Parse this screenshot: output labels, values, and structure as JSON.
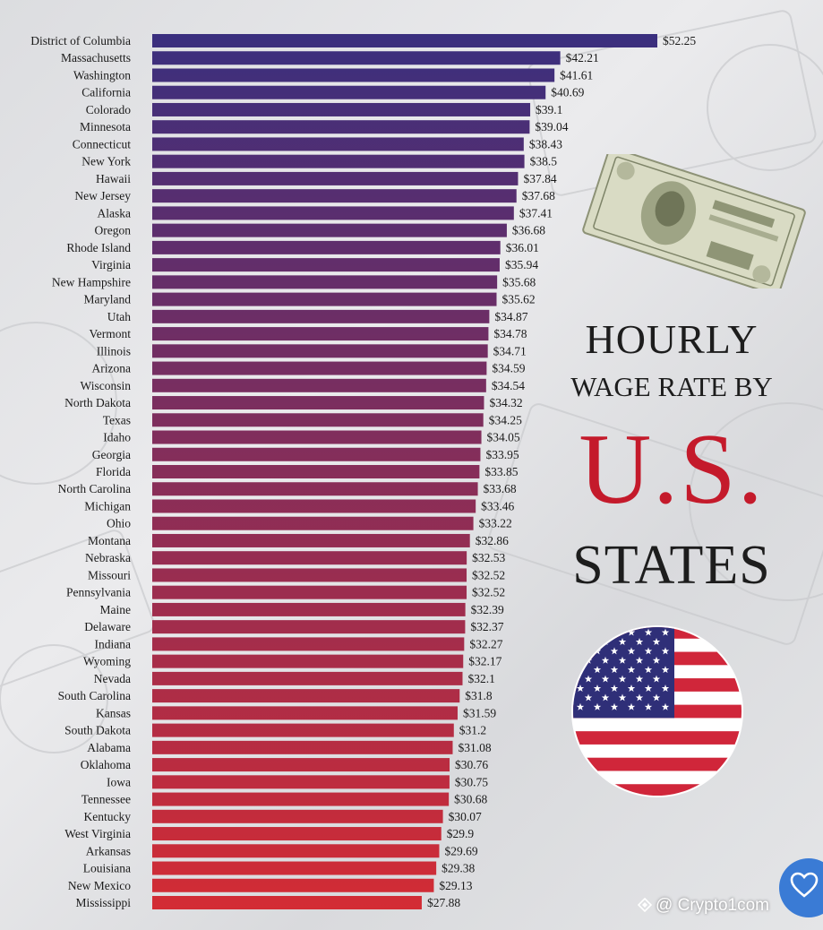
{
  "title": {
    "line1": "HOURLY",
    "line2": "WAGE RATE BY",
    "line3": "U.S.",
    "line4": "STATES"
  },
  "watermark": "@ Crypto1com",
  "icons": {
    "bill": "hundred-dollar-bill-icon",
    "flag": "us-flag-icon",
    "heart": "heart-icon",
    "watermark": "diamond-logo-icon"
  },
  "colors": {
    "bar_top": "#3a2f7e",
    "bar_bottom": "#d42c34",
    "title_red": "#c41a2b",
    "heart_blue": "#3a7bd5"
  },
  "chart_data": {
    "type": "bar",
    "orientation": "horizontal",
    "categories": [
      "District of Columbia",
      "Massachusetts",
      "Washington",
      "California",
      "Colorado",
      "Minnesota",
      "Connecticut",
      "New York",
      "Hawaii",
      "New Jersey",
      "Alaska",
      "Oregon",
      "Rhode Island",
      "Virginia",
      "New Hampshire",
      "Maryland",
      "Utah",
      "Vermont",
      "Illinois",
      "Arizona",
      "Wisconsin",
      "North Dakota",
      "Texas",
      "Idaho",
      "Georgia",
      "Florida",
      "North Carolina",
      "Michigan",
      "Ohio",
      "Montana",
      "Nebraska",
      "Missouri",
      "Pennsylvania",
      "Maine",
      "Delaware",
      "Indiana",
      "Wyoming",
      "Nevada",
      "South Carolina",
      "Kansas",
      "South Dakota",
      "Alabama",
      "Oklahoma",
      "Iowa",
      "Tennessee",
      "Kentucky",
      "West Virginia",
      "Arkansas",
      "Louisiana",
      "New Mexico",
      "Mississippi"
    ],
    "values": [
      52.25,
      42.21,
      41.61,
      40.69,
      39.1,
      39.04,
      38.43,
      38.5,
      37.84,
      37.68,
      37.41,
      36.68,
      36.01,
      35.94,
      35.68,
      35.62,
      34.87,
      34.78,
      34.71,
      34.59,
      34.54,
      34.32,
      34.25,
      34.05,
      33.95,
      33.85,
      33.68,
      33.46,
      33.22,
      32.86,
      32.53,
      32.52,
      32.52,
      32.39,
      32.37,
      32.27,
      32.17,
      32.1,
      31.8,
      31.59,
      31.2,
      31.08,
      30.76,
      30.75,
      30.68,
      30.07,
      29.9,
      29.69,
      29.38,
      29.13,
      27.88
    ],
    "value_labels": [
      "$52.25",
      "$42.21",
      "$41.61",
      "$40.69",
      "$39.1",
      "$39.04",
      "$38.43",
      "$38.5",
      "$37.84",
      "$37.68",
      "$37.41",
      "$36.68",
      "$36.01",
      "$35.94",
      "$35.68",
      "$35.62",
      "$34.87",
      "$34.78",
      "$34.71",
      "$34.59",
      "$34.54",
      "$34.32",
      "$34.25",
      "$34.05",
      "$33.95",
      "$33.85",
      "$33.68",
      "$33.46",
      "$33.22",
      "$32.86",
      "$32.53",
      "$32.52",
      "$32.52",
      "$32.39",
      "$32.37",
      "$32.27",
      "$32.17",
      "$32.1",
      "$31.8",
      "$31.59",
      "$31.2",
      "$31.08",
      "$30.76",
      "$30.75",
      "$30.68",
      "$30.07",
      "$29.9",
      "$29.69",
      "$29.38",
      "$29.13",
      "$27.88"
    ],
    "xlim": [
      0,
      52.25
    ],
    "grid": false,
    "legend": "none"
  }
}
